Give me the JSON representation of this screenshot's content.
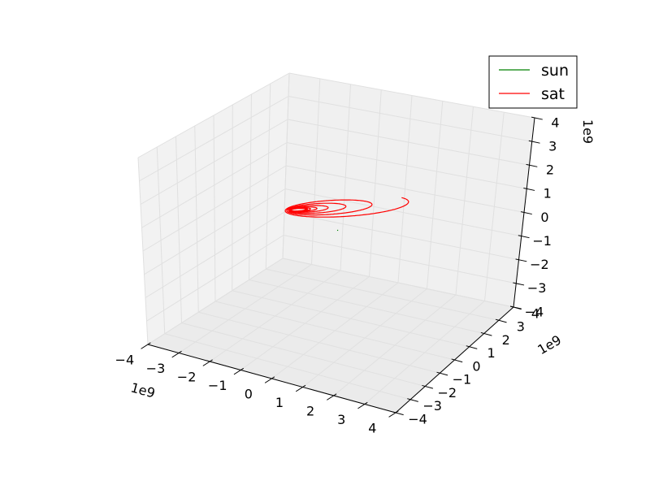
{
  "chart_data": {
    "type": "line",
    "projection": "3d",
    "grid": true,
    "legend_position": "top-right",
    "series": [
      {
        "name": "sun",
        "color": "#008000",
        "path_type": "stationary point near origin"
      },
      {
        "name": "sat",
        "color": "#ff0000",
        "path_type": "spiral orbit expanding outward"
      }
    ],
    "axes": {
      "x": {
        "range": [
          -4,
          4
        ],
        "ticks": [
          "−4",
          "−3",
          "−2",
          "−1",
          "0",
          "1",
          "2",
          "3",
          "4"
        ],
        "multiplier_label": "1e9"
      },
      "y": {
        "range": [
          -4,
          4
        ],
        "ticks": [
          "−4",
          "−3",
          "−2",
          "−1",
          "0",
          "1",
          "2",
          "3",
          "4"
        ],
        "multiplier_label": "1e9"
      },
      "z": {
        "range": [
          -4,
          4
        ],
        "ticks": [
          "−4",
          "−3",
          "−2",
          "−1",
          "0",
          "1",
          "2",
          "3",
          "4"
        ],
        "multiplier_label": "1e9"
      }
    }
  }
}
